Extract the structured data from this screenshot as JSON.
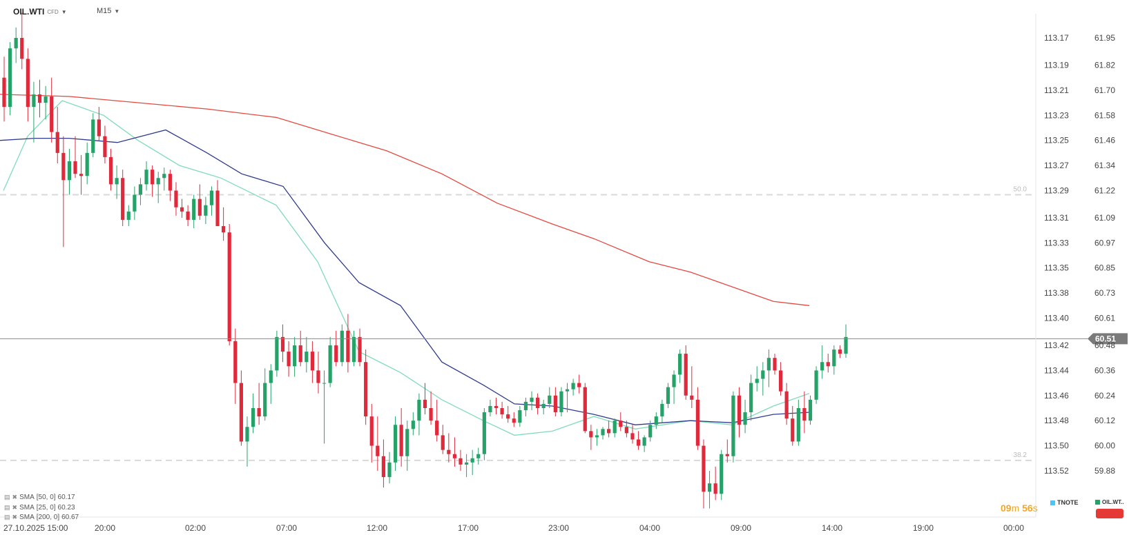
{
  "header": {
    "symbol": "OIL.WTI",
    "instrument_type": "CFD",
    "timeframe": "M15"
  },
  "indicators": [
    {
      "label": "SMA",
      "params": "[50, 0]",
      "value": "60.17"
    },
    {
      "label": "SMA",
      "params": "[25, 0]",
      "value": "60.23"
    },
    {
      "label": "SMA",
      "params": "[200, 0]",
      "value": "60.67"
    }
  ],
  "timer": {
    "minutes": "09",
    "m_unit": "m",
    "seconds": "56",
    "s_unit": "s"
  },
  "legend": {
    "tnote": "TNOTE",
    "oil": "OIL.WT.."
  },
  "colors": {
    "up": "#26a269",
    "down": "#e0293b",
    "sma50": "#2e3a8c",
    "sma25": "#7fdcb8",
    "sma200": "#e5483f",
    "tnote": "#4fc3f7"
  },
  "chart_data": {
    "type": "candlestick",
    "x_ticks": [
      "27.10.2025 15:00",
      "20:00",
      "02:00",
      "07:00",
      "12:00",
      "17:00",
      "23:00",
      "04:00",
      "09:00",
      "14:00",
      "19:00",
      "00:00"
    ],
    "y_right_ticks": [
      "61.95",
      "61.82",
      "61.70",
      "61.58",
      "61.46",
      "61.34",
      "61.22",
      "61.09",
      "60.97",
      "60.85",
      "60.73",
      "60.61",
      "60.48",
      "60.36",
      "60.24",
      "60.12",
      "60.00",
      "59.88"
    ],
    "y_right_values": [
      61.95,
      61.82,
      61.7,
      61.58,
      61.46,
      61.34,
      61.22,
      61.09,
      60.97,
      60.85,
      60.73,
      60.61,
      60.48,
      60.36,
      60.24,
      60.12,
      60.0,
      59.88
    ],
    "y_left_ticks": [
      "113.17",
      "113.19",
      "113.21",
      "113.23",
      "113.25",
      "113.27",
      "113.29",
      "113.31",
      "113.33",
      "113.35",
      "113.38",
      "113.40",
      "113.42",
      "113.44",
      "113.46",
      "113.48",
      "113.50",
      "113.52"
    ],
    "current_price": "60.51",
    "fib_levels": [
      {
        "label": "50.0",
        "price": 61.2
      },
      {
        "label": "38.2",
        "price": 59.93
      }
    ],
    "candles": [
      [
        61.76,
        61.86,
        61.55,
        61.62
      ],
      [
        61.62,
        61.93,
        61.58,
        61.9
      ],
      [
        61.9,
        62.0,
        61.83,
        61.95
      ],
      [
        61.95,
        62.07,
        61.8,
        61.85
      ],
      [
        61.85,
        61.9,
        61.55,
        61.62
      ],
      [
        61.62,
        61.74,
        61.45,
        61.68
      ],
      [
        61.68,
        61.75,
        61.57,
        61.64
      ],
      [
        61.64,
        61.72,
        61.56,
        61.67
      ],
      [
        61.67,
        61.76,
        61.45,
        61.5
      ],
      [
        61.5,
        61.62,
        61.35,
        61.4
      ],
      [
        61.4,
        61.48,
        60.95,
        61.27
      ],
      [
        61.27,
        61.42,
        61.2,
        61.36
      ],
      [
        61.36,
        61.48,
        61.28,
        61.3
      ],
      [
        61.3,
        61.39,
        61.2,
        61.29
      ],
      [
        61.29,
        61.45,
        61.25,
        61.4
      ],
      [
        61.4,
        61.59,
        61.38,
        61.56
      ],
      [
        61.56,
        61.62,
        61.46,
        61.48
      ],
      [
        61.48,
        61.53,
        61.35,
        61.38
      ],
      [
        61.38,
        61.42,
        61.22,
        61.25
      ],
      [
        61.25,
        61.34,
        61.18,
        61.28
      ],
      [
        61.28,
        61.32,
        61.05,
        61.08
      ],
      [
        61.08,
        61.15,
        61.05,
        61.12
      ],
      [
        61.12,
        61.24,
        61.08,
        61.2
      ],
      [
        61.2,
        61.28,
        61.15,
        61.25
      ],
      [
        61.25,
        61.36,
        61.22,
        61.32
      ],
      [
        61.32,
        61.34,
        61.19,
        61.25
      ],
      [
        61.25,
        61.31,
        61.16,
        61.28
      ],
      [
        61.28,
        61.33,
        61.22,
        61.3
      ],
      [
        61.3,
        61.32,
        61.17,
        61.22
      ],
      [
        61.22,
        61.26,
        61.1,
        61.14
      ],
      [
        61.14,
        61.18,
        61.09,
        61.12
      ],
      [
        61.12,
        61.15,
        61.05,
        61.08
      ],
      [
        61.08,
        61.2,
        61.04,
        61.18
      ],
      [
        61.18,
        61.25,
        61.08,
        61.1
      ],
      [
        61.1,
        61.19,
        61.06,
        61.15
      ],
      [
        61.15,
        61.24,
        61.1,
        61.22
      ],
      [
        61.22,
        61.27,
        61.05,
        61.05
      ],
      [
        61.05,
        61.14,
        60.98,
        61.02
      ],
      [
        61.02,
        61.06,
        60.48,
        60.5
      ],
      [
        60.5,
        60.56,
        60.2,
        60.3
      ],
      [
        60.3,
        60.36,
        60.0,
        60.02
      ],
      [
        60.02,
        60.14,
        59.9,
        60.09
      ],
      [
        60.09,
        60.25,
        60.06,
        60.18
      ],
      [
        60.18,
        60.3,
        60.1,
        60.14
      ],
      [
        60.14,
        60.37,
        60.12,
        60.3
      ],
      [
        60.3,
        60.39,
        60.2,
        60.36
      ],
      [
        60.36,
        60.55,
        60.33,
        60.52
      ],
      [
        60.52,
        60.58,
        60.4,
        60.45
      ],
      [
        60.45,
        60.5,
        60.33,
        60.38
      ],
      [
        60.38,
        60.52,
        60.33,
        60.48
      ],
      [
        60.48,
        60.55,
        60.38,
        60.4
      ],
      [
        60.4,
        60.52,
        60.35,
        60.45
      ],
      [
        60.45,
        60.5,
        60.3,
        60.36
      ],
      [
        60.36,
        60.45,
        60.25,
        60.3
      ],
      [
        60.3,
        60.36,
        60.01,
        60.3
      ],
      [
        60.3,
        60.52,
        60.28,
        60.48
      ],
      [
        60.48,
        60.55,
        60.38,
        60.4
      ],
      [
        60.4,
        60.58,
        60.38,
        60.55
      ],
      [
        60.55,
        60.63,
        60.35,
        60.4
      ],
      [
        60.4,
        60.55,
        60.38,
        60.52
      ],
      [
        60.52,
        60.56,
        60.38,
        60.4
      ],
      [
        60.4,
        60.46,
        60.1,
        60.14
      ],
      [
        60.14,
        60.2,
        59.92,
        60.0
      ],
      [
        60.0,
        60.14,
        59.88,
        59.95
      ],
      [
        59.95,
        60.03,
        59.8,
        59.85
      ],
      [
        59.85,
        59.97,
        59.82,
        59.92
      ],
      [
        59.92,
        60.14,
        59.88,
        60.1
      ],
      [
        60.1,
        60.18,
        59.9,
        59.95
      ],
      [
        59.95,
        60.12,
        59.88,
        60.08
      ],
      [
        60.08,
        60.16,
        60.05,
        60.12
      ],
      [
        60.12,
        60.25,
        60.05,
        60.22
      ],
      [
        60.22,
        60.3,
        60.15,
        60.18
      ],
      [
        60.18,
        60.26,
        60.1,
        60.12
      ],
      [
        60.12,
        60.22,
        60.02,
        60.05
      ],
      [
        60.05,
        60.1,
        59.96,
        59.98
      ],
      [
        59.98,
        60.06,
        59.92,
        59.96
      ],
      [
        59.96,
        60.04,
        59.9,
        59.94
      ],
      [
        59.94,
        59.98,
        59.88,
        59.91
      ],
      [
        59.91,
        59.96,
        59.85,
        59.92
      ],
      [
        59.92,
        59.98,
        59.86,
        59.94
      ],
      [
        59.94,
        59.99,
        59.91,
        59.96
      ],
      [
        59.96,
        60.18,
        59.93,
        60.16
      ],
      [
        60.16,
        60.22,
        60.14,
        60.19
      ],
      [
        60.19,
        60.23,
        60.15,
        60.18
      ],
      [
        60.18,
        60.21,
        60.13,
        60.15
      ],
      [
        60.15,
        60.19,
        60.11,
        60.13
      ],
      [
        60.13,
        60.16,
        60.09,
        60.11
      ],
      [
        60.11,
        60.19,
        60.09,
        60.17
      ],
      [
        60.17,
        60.23,
        60.14,
        60.21
      ],
      [
        60.21,
        60.26,
        60.17,
        60.23
      ],
      [
        60.23,
        60.25,
        60.15,
        60.18
      ],
      [
        60.18,
        60.22,
        60.15,
        60.2
      ],
      [
        60.2,
        60.28,
        60.18,
        60.24
      ],
      [
        60.24,
        60.28,
        60.14,
        60.16
      ],
      [
        60.16,
        60.28,
        60.14,
        60.26
      ],
      [
        60.26,
        60.3,
        60.16,
        60.27
      ],
      [
        60.27,
        60.32,
        60.24,
        60.3
      ],
      [
        60.3,
        60.34,
        60.25,
        60.28
      ],
      [
        60.28,
        60.3,
        60.06,
        60.07
      ],
      [
        60.07,
        60.1,
        59.98,
        60.04
      ],
      [
        60.04,
        60.08,
        60.0,
        60.05
      ],
      [
        60.05,
        60.09,
        60.03,
        60.08
      ],
      [
        60.08,
        60.12,
        60.04,
        60.06
      ],
      [
        60.06,
        60.13,
        60.04,
        60.12
      ],
      [
        60.12,
        60.16,
        60.07,
        60.09
      ],
      [
        60.09,
        60.12,
        60.04,
        60.06
      ],
      [
        60.06,
        60.1,
        60.01,
        60.03
      ],
      [
        60.03,
        60.07,
        59.98,
        60.0
      ],
      [
        60.0,
        60.05,
        59.97,
        60.04
      ],
      [
        60.04,
        60.12,
        60.02,
        60.1
      ],
      [
        60.1,
        60.16,
        60.08,
        60.14
      ],
      [
        60.14,
        60.22,
        60.11,
        60.2
      ],
      [
        60.2,
        60.3,
        60.18,
        60.28
      ],
      [
        60.28,
        60.36,
        60.2,
        60.34
      ],
      [
        60.34,
        60.46,
        60.3,
        60.44
      ],
      [
        60.44,
        60.48,
        60.22,
        60.24
      ],
      [
        60.24,
        60.38,
        60.18,
        60.22
      ],
      [
        60.22,
        60.28,
        59.98,
        60.0
      ],
      [
        60.0,
        60.03,
        59.7,
        59.78
      ],
      [
        59.78,
        59.88,
        59.7,
        59.82
      ],
      [
        59.82,
        59.9,
        59.74,
        59.77
      ],
      [
        59.77,
        59.98,
        59.74,
        59.96
      ],
      [
        59.96,
        60.03,
        59.92,
        59.95
      ],
      [
        59.95,
        60.26,
        59.92,
        60.24
      ],
      [
        60.24,
        60.28,
        60.04,
        60.1
      ],
      [
        60.1,
        60.22,
        60.06,
        60.16
      ],
      [
        60.16,
        60.34,
        60.12,
        60.3
      ],
      [
        60.3,
        60.38,
        60.26,
        60.32
      ],
      [
        60.32,
        60.4,
        60.24,
        60.36
      ],
      [
        60.36,
        60.46,
        60.28,
        60.42
      ],
      [
        60.42,
        60.44,
        60.34,
        60.36
      ],
      [
        60.36,
        60.4,
        60.24,
        60.26
      ],
      [
        60.26,
        60.3,
        60.1,
        60.13
      ],
      [
        60.13,
        60.19,
        60.0,
        60.02
      ],
      [
        60.02,
        60.22,
        60.0,
        60.18
      ],
      [
        60.18,
        60.26,
        60.06,
        60.12
      ],
      [
        60.12,
        60.24,
        60.1,
        60.22
      ],
      [
        60.22,
        60.38,
        60.2,
        60.36
      ],
      [
        60.36,
        60.48,
        60.32,
        60.4
      ],
      [
        60.4,
        60.44,
        60.35,
        60.38
      ],
      [
        60.38,
        60.48,
        60.34,
        60.46
      ],
      [
        60.46,
        60.48,
        60.42,
        60.44
      ],
      [
        60.44,
        60.58,
        60.42,
        60.52
      ]
    ],
    "sma50": [
      [
        0,
        61.46
      ],
      [
        50,
        61.47
      ],
      [
        100,
        61.47
      ],
      [
        170,
        61.45
      ],
      [
        240,
        61.51
      ],
      [
        300,
        61.4
      ],
      [
        350,
        61.3
      ],
      [
        410,
        61.24
      ],
      [
        470,
        60.97
      ],
      [
        520,
        60.78
      ],
      [
        580,
        60.67
      ],
      [
        640,
        60.4
      ],
      [
        700,
        60.29
      ],
      [
        745,
        60.2
      ],
      [
        800,
        60.19
      ],
      [
        860,
        60.15
      ],
      [
        920,
        60.1
      ],
      [
        1000,
        60.12
      ],
      [
        1060,
        60.11
      ],
      [
        1120,
        60.15
      ],
      [
        1172,
        60.16
      ]
    ],
    "sma25": [
      [
        5,
        61.22
      ],
      [
        40,
        61.48
      ],
      [
        90,
        61.65
      ],
      [
        150,
        61.58
      ],
      [
        200,
        61.46
      ],
      [
        260,
        61.34
      ],
      [
        320,
        61.28
      ],
      [
        400,
        61.15
      ],
      [
        460,
        60.88
      ],
      [
        520,
        60.45
      ],
      [
        580,
        60.35
      ],
      [
        640,
        60.22
      ],
      [
        700,
        60.12
      ],
      [
        745,
        60.05
      ],
      [
        800,
        60.07
      ],
      [
        860,
        60.14
      ],
      [
        920,
        60.08
      ],
      [
        1000,
        60.12
      ],
      [
        1060,
        60.1
      ],
      [
        1120,
        60.19
      ],
      [
        1172,
        60.25
      ]
    ],
    "sma200": [
      [
        0,
        61.68
      ],
      [
        100,
        61.67
      ],
      [
        200,
        61.64
      ],
      [
        300,
        61.61
      ],
      [
        400,
        61.57
      ],
      [
        480,
        61.49
      ],
      [
        560,
        61.41
      ],
      [
        640,
        61.3
      ],
      [
        720,
        61.16
      ],
      [
        800,
        61.06
      ],
      [
        860,
        60.99
      ],
      [
        940,
        60.88
      ],
      [
        1000,
        60.83
      ],
      [
        1060,
        60.76
      ],
      [
        1120,
        60.69
      ],
      [
        1172,
        60.67
      ]
    ]
  }
}
